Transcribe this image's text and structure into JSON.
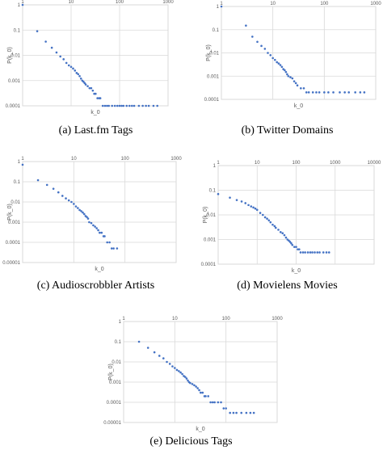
{
  "chart_data": [
    {
      "type": "scatter",
      "caption": "(a) Last.fm Tags",
      "xlabel": "k_0",
      "ylabel": "P(k_0)",
      "xlog": true,
      "ylog": true,
      "xlim": [
        1,
        1000
      ],
      "ylim": [
        0.0001,
        1
      ],
      "xticks": [
        "1",
        "10",
        "100",
        "1000"
      ],
      "yticks": [
        "1",
        "0.1",
        "0.01",
        "0.001",
        "0.0001"
      ],
      "series": [
        {
          "x": [
            1,
            2,
            3,
            4,
            5,
            6,
            7,
            8,
            9,
            10,
            11,
            12,
            13,
            14,
            15,
            16,
            17,
            18,
            19,
            20,
            22,
            24,
            26,
            28,
            30,
            32,
            35,
            38,
            40,
            45,
            50,
            55,
            60,
            70,
            80,
            90,
            100,
            110,
            120,
            140,
            160,
            180,
            200,
            250,
            300,
            350,
            400,
            500,
            600
          ],
          "y": [
            1,
            0.09,
            0.035,
            0.02,
            0.013,
            0.009,
            0.007,
            0.005,
            0.004,
            0.0035,
            0.003,
            0.0025,
            0.002,
            0.0018,
            0.0015,
            0.0012,
            0.001,
            0.0009,
            0.0008,
            0.0007,
            0.0006,
            0.0005,
            0.0005,
            0.0004,
            0.0003,
            0.0003,
            0.0002,
            0.0002,
            0.0002,
            0.0001,
            0.0001,
            0.0001,
            0.0001,
            0.0001,
            0.0001,
            0.0001,
            0.0001,
            0.0001,
            0.0001,
            0.0001,
            0.0001,
            0.0001,
            0.0001,
            0.0001,
            0.0001,
            0.0001,
            0.0001,
            0.0001,
            0.0001
          ]
        }
      ]
    },
    {
      "type": "scatter",
      "caption": "(b) Twitter Domains",
      "xlabel": "k_0",
      "ylabel": "P(k_0)",
      "xlog": true,
      "ylog": true,
      "xlim": [
        1,
        1000
      ],
      "ylim": [
        0.0001,
        1
      ],
      "xticks": [
        "1",
        "10",
        "100",
        "1000"
      ],
      "yticks": [
        "1",
        "0.1",
        "0.01",
        "0.001",
        "0.0001"
      ],
      "series": [
        {
          "x": [
            1,
            3,
            4,
            5,
            6,
            7,
            8,
            9,
            10,
            11,
            12,
            13,
            14,
            15,
            16,
            17,
            18,
            19,
            20,
            22,
            24,
            26,
            28,
            30,
            35,
            40,
            45,
            50,
            60,
            70,
            80,
            100,
            120,
            150,
            200,
            250,
            300,
            400,
            500,
            600
          ],
          "y": [
            1,
            0.15,
            0.05,
            0.03,
            0.02,
            0.015,
            0.01,
            0.008,
            0.006,
            0.005,
            0.004,
            0.0035,
            0.003,
            0.0025,
            0.002,
            0.0018,
            0.0015,
            0.0012,
            0.001,
            0.0009,
            0.0008,
            0.0006,
            0.0005,
            0.0004,
            0.0003,
            0.0003,
            0.0002,
            0.0002,
            0.0002,
            0.0002,
            0.0002,
            0.0002,
            0.0002,
            0.0002,
            0.0002,
            0.0002,
            0.0002,
            0.0002,
            0.0002,
            0.0002
          ]
        }
      ]
    },
    {
      "type": "scatter",
      "caption": "(c) Audioscrobbler Artists",
      "xlabel": "k_0",
      "ylabel": "P(k_0)",
      "xlog": true,
      "ylog": true,
      "xlim": [
        1,
        1000
      ],
      "ylim": [
        1e-05,
        1
      ],
      "xticks": [
        "1",
        "10",
        "100",
        "1000"
      ],
      "yticks": [
        "1",
        "0.1",
        "0.01",
        "0.001",
        "0.0001",
        "0.00001"
      ],
      "series": [
        {
          "x": [
            1,
            2,
            3,
            4,
            5,
            6,
            7,
            8,
            9,
            10,
            11,
            12,
            13,
            14,
            15,
            16,
            17,
            18,
            19,
            20,
            22,
            24,
            26,
            28,
            30,
            32,
            35,
            38,
            40,
            45,
            50,
            55,
            60,
            70
          ],
          "y": [
            0.7,
            0.12,
            0.07,
            0.045,
            0.03,
            0.02,
            0.015,
            0.012,
            0.01,
            0.008,
            0.006,
            0.005,
            0.004,
            0.0035,
            0.003,
            0.0025,
            0.002,
            0.0018,
            0.0015,
            0.001,
            0.0009,
            0.0007,
            0.0006,
            0.0005,
            0.0004,
            0.0003,
            0.0003,
            0.0002,
            0.0002,
            0.0001,
            0.0001,
            5e-05,
            5e-05,
            5e-05
          ]
        }
      ]
    },
    {
      "type": "scatter",
      "caption": "(d) Movielens Movies",
      "xlabel": "k_0",
      "ylabel": "P(k_0)",
      "xlog": true,
      "ylog": true,
      "xlim": [
        1,
        10000
      ],
      "ylim": [
        0.0001,
        1
      ],
      "xticks": [
        "1",
        "10",
        "100",
        "1000",
        "10000"
      ],
      "yticks": [
        "1",
        "0.1",
        "0.01",
        "0.001",
        "0.0001"
      ],
      "series": [
        {
          "x": [
            1,
            2,
            3,
            4,
            5,
            6,
            7,
            8,
            9,
            10,
            12,
            14,
            16,
            18,
            20,
            22,
            25,
            28,
            30,
            35,
            40,
            45,
            50,
            55,
            60,
            65,
            70,
            75,
            80,
            90,
            100,
            110,
            120,
            130,
            150,
            170,
            200,
            230,
            260,
            300,
            350,
            400,
            500,
            600,
            700
          ],
          "y": [
            0.07,
            0.05,
            0.04,
            0.035,
            0.03,
            0.025,
            0.022,
            0.02,
            0.018,
            0.016,
            0.012,
            0.01,
            0.008,
            0.007,
            0.006,
            0.005,
            0.004,
            0.0035,
            0.003,
            0.0025,
            0.002,
            0.0018,
            0.0015,
            0.0012,
            0.001,
            0.0009,
            0.0008,
            0.0007,
            0.0006,
            0.0005,
            0.0005,
            0.0004,
            0.0004,
            0.0003,
            0.0003,
            0.0003,
            0.0003,
            0.0003,
            0.0003,
            0.0003,
            0.0003,
            0.0003,
            0.0003,
            0.0003,
            0.0003
          ]
        }
      ]
    },
    {
      "type": "scatter",
      "caption": "(e) Delicious Tags",
      "xlabel": "k_0",
      "ylabel": "P(k_0)",
      "xlog": true,
      "ylog": true,
      "xlim": [
        1,
        1000
      ],
      "ylim": [
        1e-05,
        1
      ],
      "xticks": [
        "1",
        "10",
        "100",
        "1000"
      ],
      "yticks": [
        "1",
        "0.1",
        "0.01",
        "0.001",
        "0.0001",
        "0.00001"
      ],
      "series": [
        {
          "x": [
            2,
            3,
            4,
            5,
            6,
            7,
            8,
            9,
            10,
            11,
            12,
            13,
            14,
            15,
            16,
            17,
            18,
            19,
            20,
            22,
            24,
            26,
            28,
            30,
            32,
            35,
            38,
            40,
            45,
            50,
            55,
            60,
            70,
            80,
            90,
            100,
            120,
            140,
            160,
            200,
            250,
            300,
            350
          ],
          "y": [
            0.1,
            0.05,
            0.03,
            0.02,
            0.015,
            0.01,
            0.008,
            0.006,
            0.005,
            0.004,
            0.0035,
            0.003,
            0.0025,
            0.002,
            0.0018,
            0.0015,
            0.0012,
            0.001,
            0.0009,
            0.0008,
            0.0007,
            0.0006,
            0.0005,
            0.0004,
            0.0003,
            0.0003,
            0.0002,
            0.0002,
            0.0002,
            0.0001,
            0.0001,
            0.0001,
            0.0001,
            0.0001,
            5e-05,
            5e-05,
            3e-05,
            3e-05,
            3e-05,
            3e-05,
            3e-05,
            3e-05,
            3e-05
          ]
        }
      ]
    }
  ]
}
